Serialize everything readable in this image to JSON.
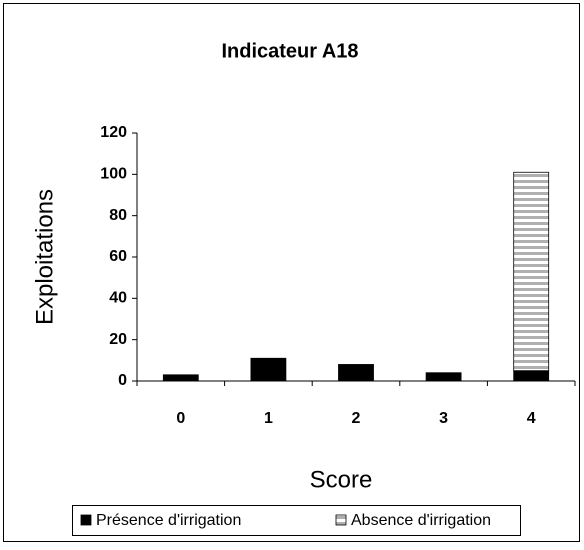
{
  "chart_data": {
    "type": "stacked_bar",
    "title": "Indicateur A18",
    "xlabel": "Score",
    "ylabel": "Exploitations",
    "categories": [
      "0",
      "1",
      "2",
      "3",
      "4"
    ],
    "series": [
      {
        "name": "Présence d'irrigation",
        "color": "#000000",
        "values": [
          3,
          11,
          8,
          4,
          5
        ]
      },
      {
        "name": "Absence d'irrigation",
        "color": "#b0b0b0",
        "values": [
          0,
          0,
          0,
          0,
          96
        ]
      }
    ],
    "ylim": [
      0,
      120
    ],
    "yticks": [
      0,
      20,
      40,
      60,
      80,
      100,
      120
    ],
    "grid": false,
    "legend": "bottom"
  }
}
